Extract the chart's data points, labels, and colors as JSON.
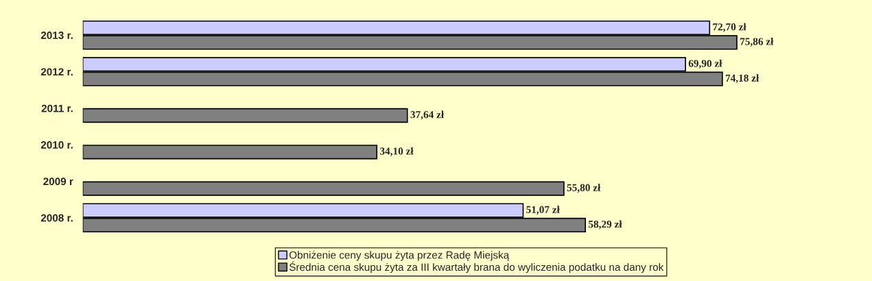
{
  "chart_data": {
    "type": "bar",
    "orientation": "horizontal",
    "categories": [
      "2013 r.",
      "2012 r.",
      "2011 r.",
      "2010 r.",
      "2009 r",
      "2008 r."
    ],
    "series": [
      {
        "name": "Obniżenie ceny skupu żyta przez Radę Miejską",
        "color": "#ccccff",
        "values": [
          72.7,
          69.9,
          null,
          null,
          null,
          51.07
        ],
        "value_labels": [
          "72,70 zł",
          "69,90 zł",
          null,
          null,
          null,
          "51,07 zł"
        ]
      },
      {
        "name": "Średnia cena skupu żyta za III kwartały brana do wyliczenia podatku na dany rok",
        "color": "#808080",
        "values": [
          75.86,
          74.18,
          37.64,
          34.1,
          55.8,
          58.29
        ],
        "value_labels": [
          "75,86 zł",
          "74,18 zł",
          "37,64 zł",
          "34,10 zł",
          "55,80 zł",
          "58,29 zł"
        ]
      }
    ],
    "legend": "bottom",
    "grid": false,
    "tick_labels": "y"
  }
}
